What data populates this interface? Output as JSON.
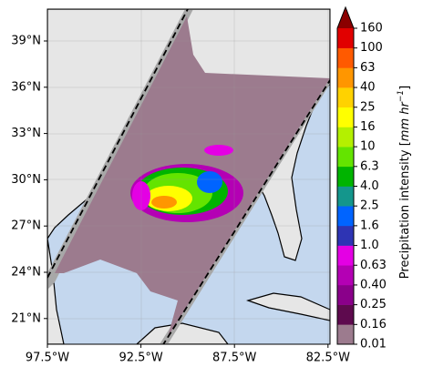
{
  "map": {
    "lat_labels": [
      "39°N",
      "36°N",
      "33°N",
      "30°N",
      "27°N",
      "24°N",
      "21°N"
    ],
    "lon_labels": [
      "97.5°W",
      "92.5°W",
      "87.5°W",
      "82.5°W"
    ]
  },
  "colorbar": {
    "label": {
      "text": "Precipitation intensity [",
      "unit": "mm hr",
      "exponent": "−1",
      "close": "]"
    },
    "levels": [
      "0.01",
      "0.16",
      "0.25",
      "0.40",
      "0.63",
      "1.0",
      "1.6",
      "2.5",
      "4.0",
      "6.3",
      "10",
      "16",
      "25",
      "40",
      "63",
      "100",
      "160"
    ],
    "colors": [
      "#9c7b8e",
      "#5e0a4e",
      "#8a008a",
      "#b400b4",
      "#e400e4",
      "#2e34b4",
      "#0064ff",
      "#14968c",
      "#00b400",
      "#64e400",
      "#b4f000",
      "#ffff00",
      "#ffd200",
      "#ff9600",
      "#ff5a00",
      "#e10000"
    ],
    "extend_color": "#8b0000"
  }
}
